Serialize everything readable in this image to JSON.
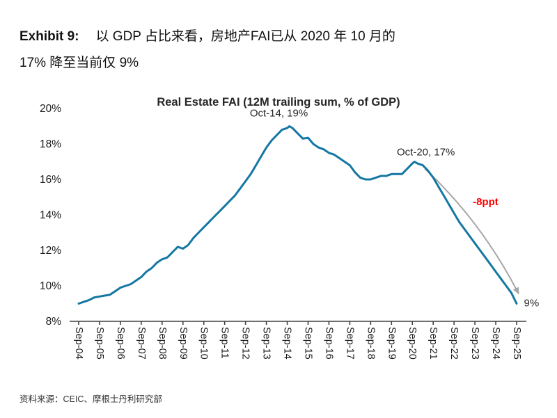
{
  "exhibit": {
    "label": "Exhibit 9:",
    "title_line1": "以 GDP 占比来看，房地产FAI已从 2020 年 10 月的",
    "title_line2": "17% 降至当前仅 9%"
  },
  "source": "资料来源：CEIC、摩根士丹利研究部",
  "colors": {
    "line": "#1577A3",
    "accent_red": "#FF0000",
    "axis": "#404040",
    "arrow_gray": "#A6A6A6"
  },
  "chart_data": {
    "type": "line",
    "title": "Real Estate FAI (12M trailing sum, % of GDP)",
    "xlabel": "",
    "ylabel": "",
    "ylim": [
      8,
      20
    ],
    "ytick_step": 2,
    "ytick_suffix": "%",
    "grid": false,
    "legend": "none",
    "x_unit": "years since Sep-2004 (0.25 = one quarter)",
    "x_tick_positions": [
      0,
      1,
      2,
      3,
      4,
      5,
      6,
      7,
      8,
      9,
      10,
      11,
      12,
      13,
      14,
      15,
      16,
      17,
      18,
      19,
      20,
      21
    ],
    "x_tick_labels": [
      "Sep-04",
      "Sep-05",
      "Sep-06",
      "Sep-07",
      "Sep-08",
      "Sep-09",
      "Sep-10",
      "Sep-11",
      "Sep-12",
      "Sep-13",
      "Sep-14",
      "Sep-15",
      "Sep-16",
      "Sep-17",
      "Sep-18",
      "Sep-19",
      "Sep-20",
      "Sep-21",
      "Sep-22",
      "Sep-23",
      "Sep-24",
      "Sep-25"
    ],
    "series": [
      {
        "name": "Real Estate FAI (12M trailing sum, % of GDP)",
        "color": "#1577A3",
        "x": [
          0,
          0.25,
          0.5,
          0.75,
          1,
          1.25,
          1.5,
          1.75,
          2,
          2.25,
          2.5,
          2.75,
          3,
          3.25,
          3.5,
          3.75,
          4,
          4.25,
          4.5,
          4.75,
          5,
          5.25,
          5.5,
          5.75,
          6,
          6.25,
          6.5,
          6.75,
          7,
          7.25,
          7.5,
          7.75,
          8,
          8.25,
          8.5,
          8.75,
          9,
          9.25,
          9.5,
          9.75,
          10,
          10.1,
          10.25,
          10.5,
          10.75,
          11,
          11.25,
          11.5,
          11.75,
          12,
          12.25,
          12.5,
          12.75,
          13,
          13.25,
          13.5,
          13.75,
          14,
          14.25,
          14.5,
          14.75,
          15,
          15.25,
          15.5,
          15.75,
          16,
          16.1,
          16.25,
          16.5,
          16.75,
          17,
          17.25,
          17.5,
          17.75,
          18,
          18.25,
          18.5,
          18.75,
          19,
          19.25,
          19.5,
          19.75,
          20,
          20.25,
          20.5,
          20.75,
          21
        ],
        "y": [
          9.0,
          9.1,
          9.2,
          9.35,
          9.4,
          9.45,
          9.5,
          9.7,
          9.9,
          10.0,
          10.1,
          10.3,
          10.5,
          10.8,
          11.0,
          11.3,
          11.5,
          11.6,
          11.9,
          12.2,
          12.1,
          12.3,
          12.7,
          13.0,
          13.3,
          13.6,
          13.9,
          14.2,
          14.5,
          14.8,
          15.1,
          15.5,
          15.9,
          16.3,
          16.8,
          17.3,
          17.8,
          18.2,
          18.5,
          18.8,
          18.9,
          19.0,
          18.9,
          18.6,
          18.3,
          18.35,
          18.0,
          17.8,
          17.7,
          17.5,
          17.4,
          17.2,
          17.0,
          16.8,
          16.4,
          16.1,
          16.0,
          16.0,
          16.1,
          16.2,
          16.2,
          16.3,
          16.3,
          16.3,
          16.6,
          16.9,
          17.0,
          16.9,
          16.8,
          16.5,
          16.1,
          15.6,
          15.1,
          14.6,
          14.1,
          13.6,
          13.2,
          12.8,
          12.4,
          12.0,
          11.6,
          11.2,
          10.8,
          10.4,
          10.0,
          9.6,
          9.0
        ]
      }
    ],
    "annotations": [
      {
        "id": "oct14",
        "text": "Oct-14, 19%",
        "x": 9.6,
        "y": 19.55,
        "anchor": "middle",
        "color": "#262626",
        "bold": false,
        "size": 15
      },
      {
        "id": "oct20",
        "text": "Oct-20, 17%",
        "x": 16.65,
        "y": 17.35,
        "anchor": "middle",
        "color": "#262626",
        "bold": false,
        "size": 15
      },
      {
        "id": "drop",
        "text": "-8ppt",
        "x": 18.9,
        "y": 14.55,
        "anchor": "start",
        "color": "#FF0000",
        "bold": true,
        "size": 16.5
      },
      {
        "id": "current",
        "text": "9%",
        "x": 21.35,
        "y": 8.85,
        "anchor": "start",
        "color": "#262626",
        "bold": false,
        "size": 15
      }
    ],
    "arrow": {
      "from": [
        16.6,
        16.6
      ],
      "to": [
        21.1,
        9.55
      ],
      "color": "#A6A6A6"
    }
  }
}
